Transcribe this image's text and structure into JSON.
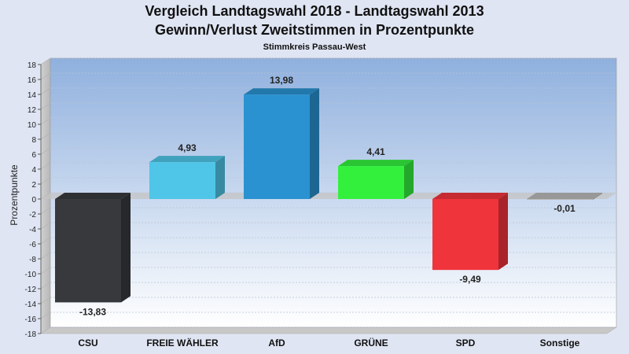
{
  "chart_data": {
    "type": "bar",
    "title": "Vergleich Landtagswahl 2018 - Landtagswahl 2013",
    "subtitle": "Gewinn/Verlust Zweitstimmen in Prozentpunkte",
    "caption": "Stimmkreis Passau-West",
    "ylabel": "Prozentpunkte",
    "xlabel": "",
    "ylim": [
      -18,
      18
    ],
    "yticks": [
      18,
      16,
      14,
      12,
      10,
      8,
      6,
      4,
      2,
      0,
      -2,
      -4,
      -6,
      -8,
      -10,
      -12,
      -14,
      -16,
      -18
    ],
    "categories": [
      "CSU",
      "FREIE WÄHLER",
      "AfD",
      "GRÜNE",
      "SPD",
      "Sonstige"
    ],
    "values": [
      -13.83,
      4.93,
      13.98,
      4.41,
      -9.49,
      -0.01
    ],
    "value_labels": [
      "-13,83",
      "4,93",
      "13,98",
      "4,41",
      "-9,49",
      "-0,01"
    ],
    "colors": [
      "#38393d",
      "#4fc5e8",
      "#2a92d0",
      "#33f03d",
      "#f0343c",
      "#b9b9b9"
    ],
    "grid": true,
    "legend": "none"
  }
}
